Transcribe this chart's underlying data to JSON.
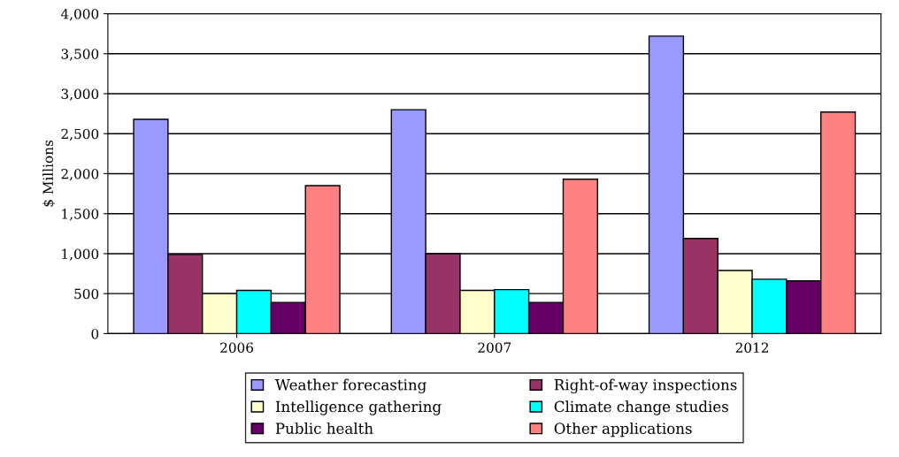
{
  "chart_data": {
    "type": "bar",
    "ylabel": "$ Millions",
    "categories": [
      "2006",
      "2007",
      "2012"
    ],
    "series": [
      {
        "name": "Weather forecasting",
        "color": "#9999ff",
        "values": [
          2680,
          2800,
          3720
        ]
      },
      {
        "name": "Right-of-way inspections",
        "color": "#993366",
        "values": [
          990,
          1000,
          1190
        ]
      },
      {
        "name": "Intelligence gathering",
        "color": "#ffffcc",
        "values": [
          500,
          540,
          790
        ]
      },
      {
        "name": "Climate change studies",
        "color": "#00ffff",
        "values": [
          540,
          550,
          680
        ]
      },
      {
        "name": "Public health",
        "color": "#660066",
        "values": [
          390,
          390,
          660
        ]
      },
      {
        "name": "Other applications",
        "color": "#ff8080",
        "values": [
          1850,
          1930,
          2770
        ]
      }
    ],
    "ylim": [
      0,
      4000
    ],
    "yticks": [
      {
        "value": 0,
        "label": "0"
      },
      {
        "value": 500,
        "label": "500"
      },
      {
        "value": 1000,
        "label": "1,000"
      },
      {
        "value": 1500,
        "label": "1,500"
      },
      {
        "value": 2000,
        "label": "2,000"
      },
      {
        "value": 2500,
        "label": "2,500"
      },
      {
        "value": 3000,
        "label": "3,000"
      },
      {
        "value": 3500,
        "label": "3,500"
      },
      {
        "value": 4000,
        "label": "4,000"
      }
    ],
    "grid": "y",
    "legend": "bottom"
  }
}
